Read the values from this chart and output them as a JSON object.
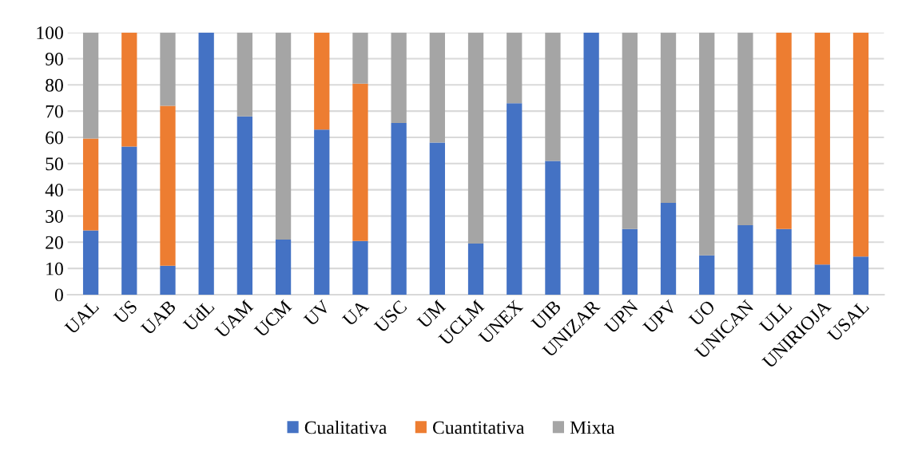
{
  "chart_data": {
    "type": "bar",
    "stacked": true,
    "categories": [
      "UAL",
      "US",
      "UAB",
      "UdL",
      "UAM",
      "UCM",
      "UV",
      "UA",
      "USC",
      "UM",
      "UCLM",
      "UNEX",
      "UIB",
      "UNIZAR",
      "UPN",
      "UPV",
      "UO",
      "UNICAN",
      "ULL",
      "UNIRIOJA",
      "USAL"
    ],
    "series": [
      {
        "name": "Cualitativa",
        "color": "#4472c4",
        "values": [
          24.5,
          56.5,
          11,
          100,
          68,
          21,
          63,
          20.5,
          65.5,
          58,
          19.5,
          73,
          51,
          100,
          25,
          35,
          15,
          26.5,
          25,
          11.5,
          14.5
        ]
      },
      {
        "name": "Cuantitativa",
        "color": "#ed7d31",
        "values": [
          35,
          43.5,
          61,
          0,
          0,
          0,
          37,
          60,
          0,
          0,
          0,
          0,
          0,
          0,
          0,
          0,
          0,
          0,
          75,
          88.5,
          85.5
        ]
      },
      {
        "name": "Mixta",
        "color": "#a5a5a5",
        "values": [
          40.5,
          0,
          28,
          0,
          32,
          79,
          0,
          19.5,
          34.5,
          42,
          80.5,
          27,
          49,
          0,
          75,
          65,
          85,
          73.5,
          0,
          0,
          0
        ]
      }
    ],
    "ylim": [
      0,
      100
    ],
    "yticks": [
      0,
      10,
      20,
      30,
      40,
      50,
      60,
      70,
      80,
      90,
      100
    ],
    "grid": "y",
    "legend": "bottom"
  }
}
